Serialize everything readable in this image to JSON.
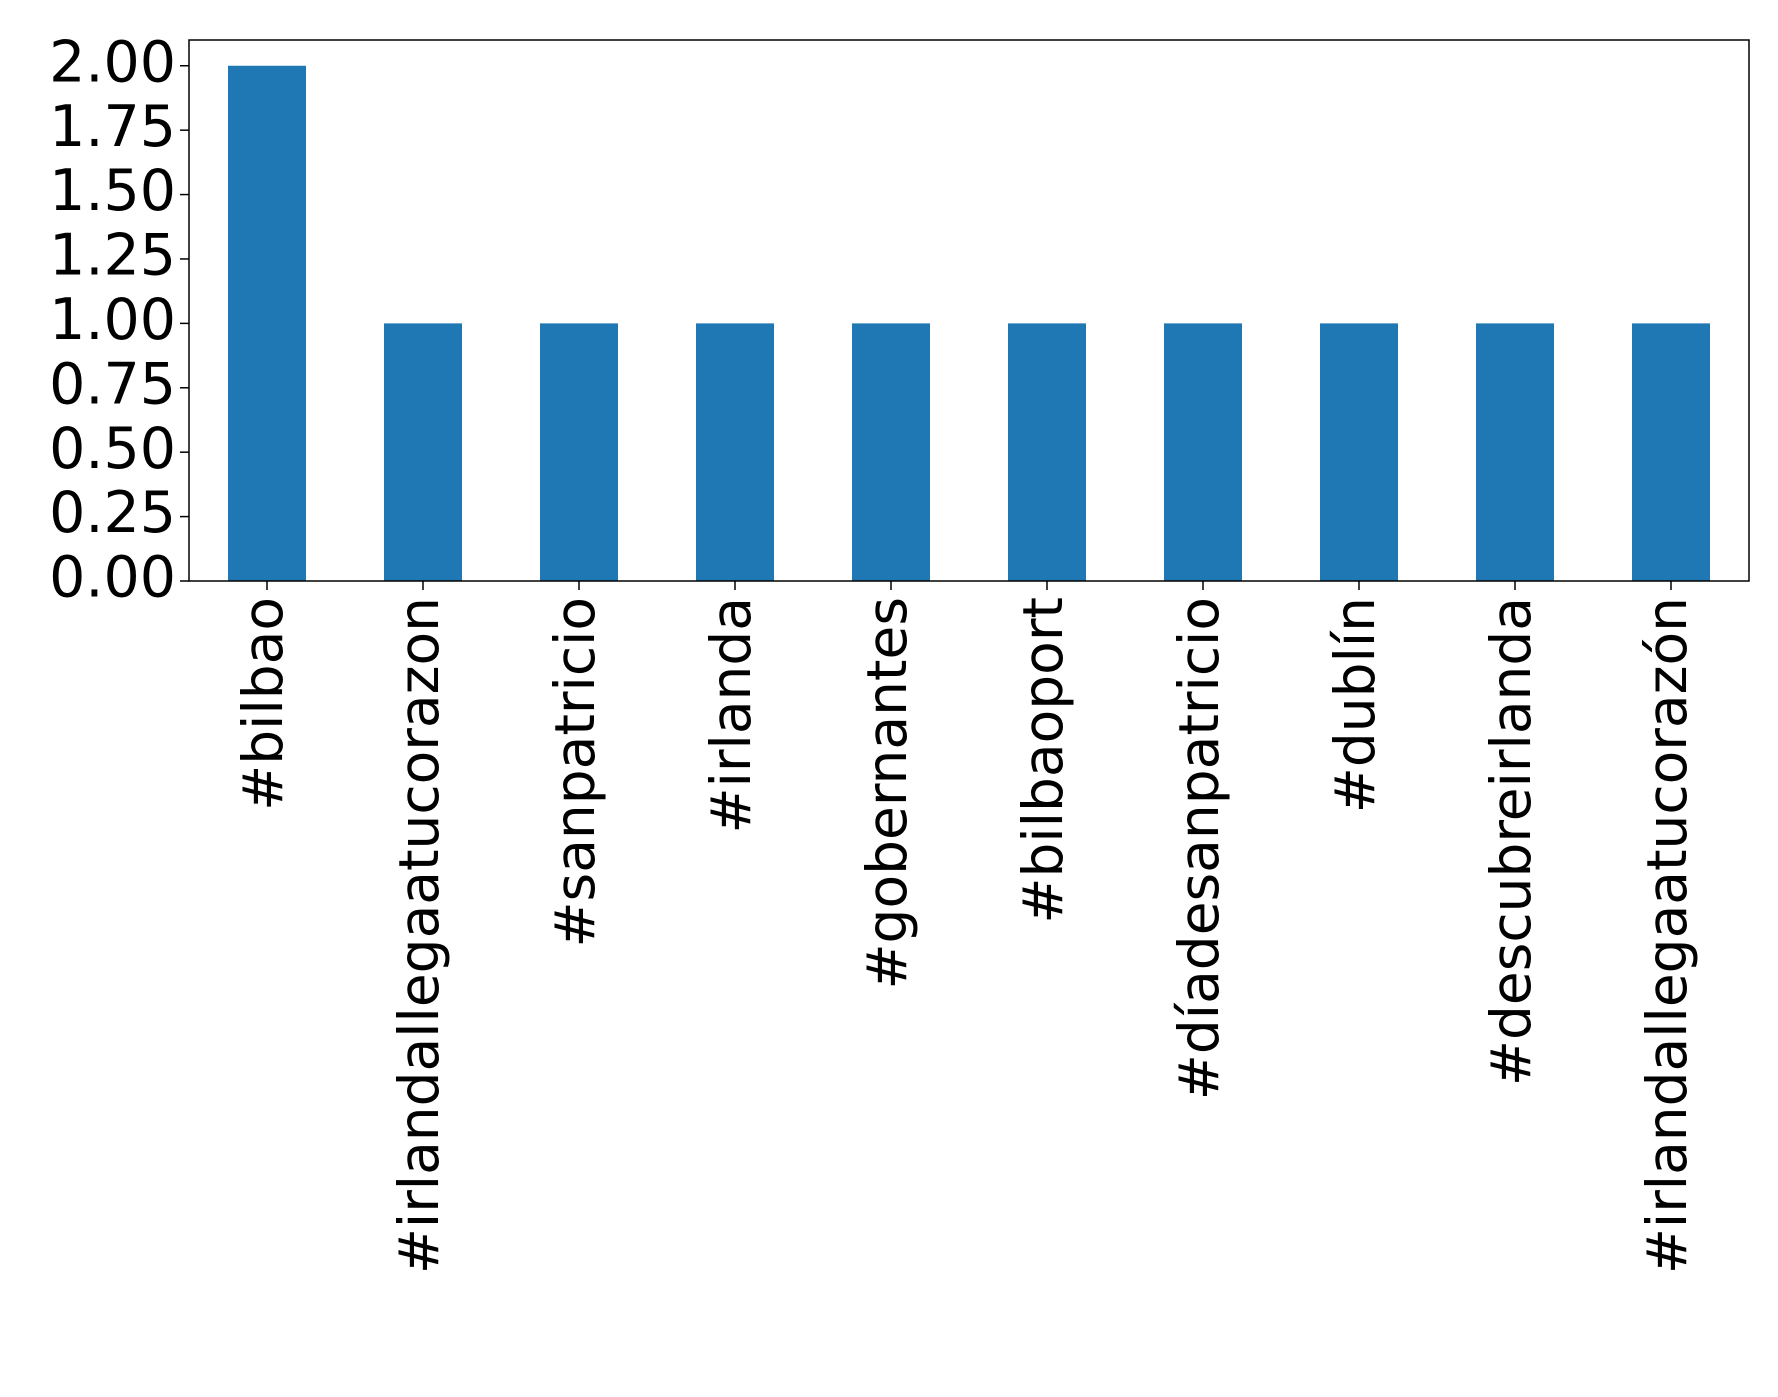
{
  "chart_data": {
    "type": "bar",
    "categories": [
      "#bilbao",
      "#irlandallegaatucorazon",
      "#sanpatricio",
      "#irlanda",
      "#gobernantes",
      "#bilbaoport",
      "#díadesanpatricio",
      "#dublín",
      "#descubreirlanda",
      "#irlandallegaatucorazón"
    ],
    "values": [
      2,
      1,
      1,
      1,
      1,
      1,
      1,
      1,
      1,
      1
    ],
    "color": "#1f77b4",
    "ylim": [
      0,
      2.1
    ],
    "yticks": [
      {
        "value": 0,
        "label": "0.00"
      },
      {
        "value": 0.25,
        "label": "0.25"
      },
      {
        "value": 0.5,
        "label": "0.50"
      },
      {
        "value": 0.75,
        "label": "0.75"
      },
      {
        "value": 1,
        "label": "1.00"
      },
      {
        "value": 1.25,
        "label": "1.25"
      },
      {
        "value": 1.5,
        "label": "1.50"
      },
      {
        "value": 1.75,
        "label": "1.75"
      },
      {
        "value": 2,
        "label": "2.00"
      }
    ],
    "grid": false
  }
}
